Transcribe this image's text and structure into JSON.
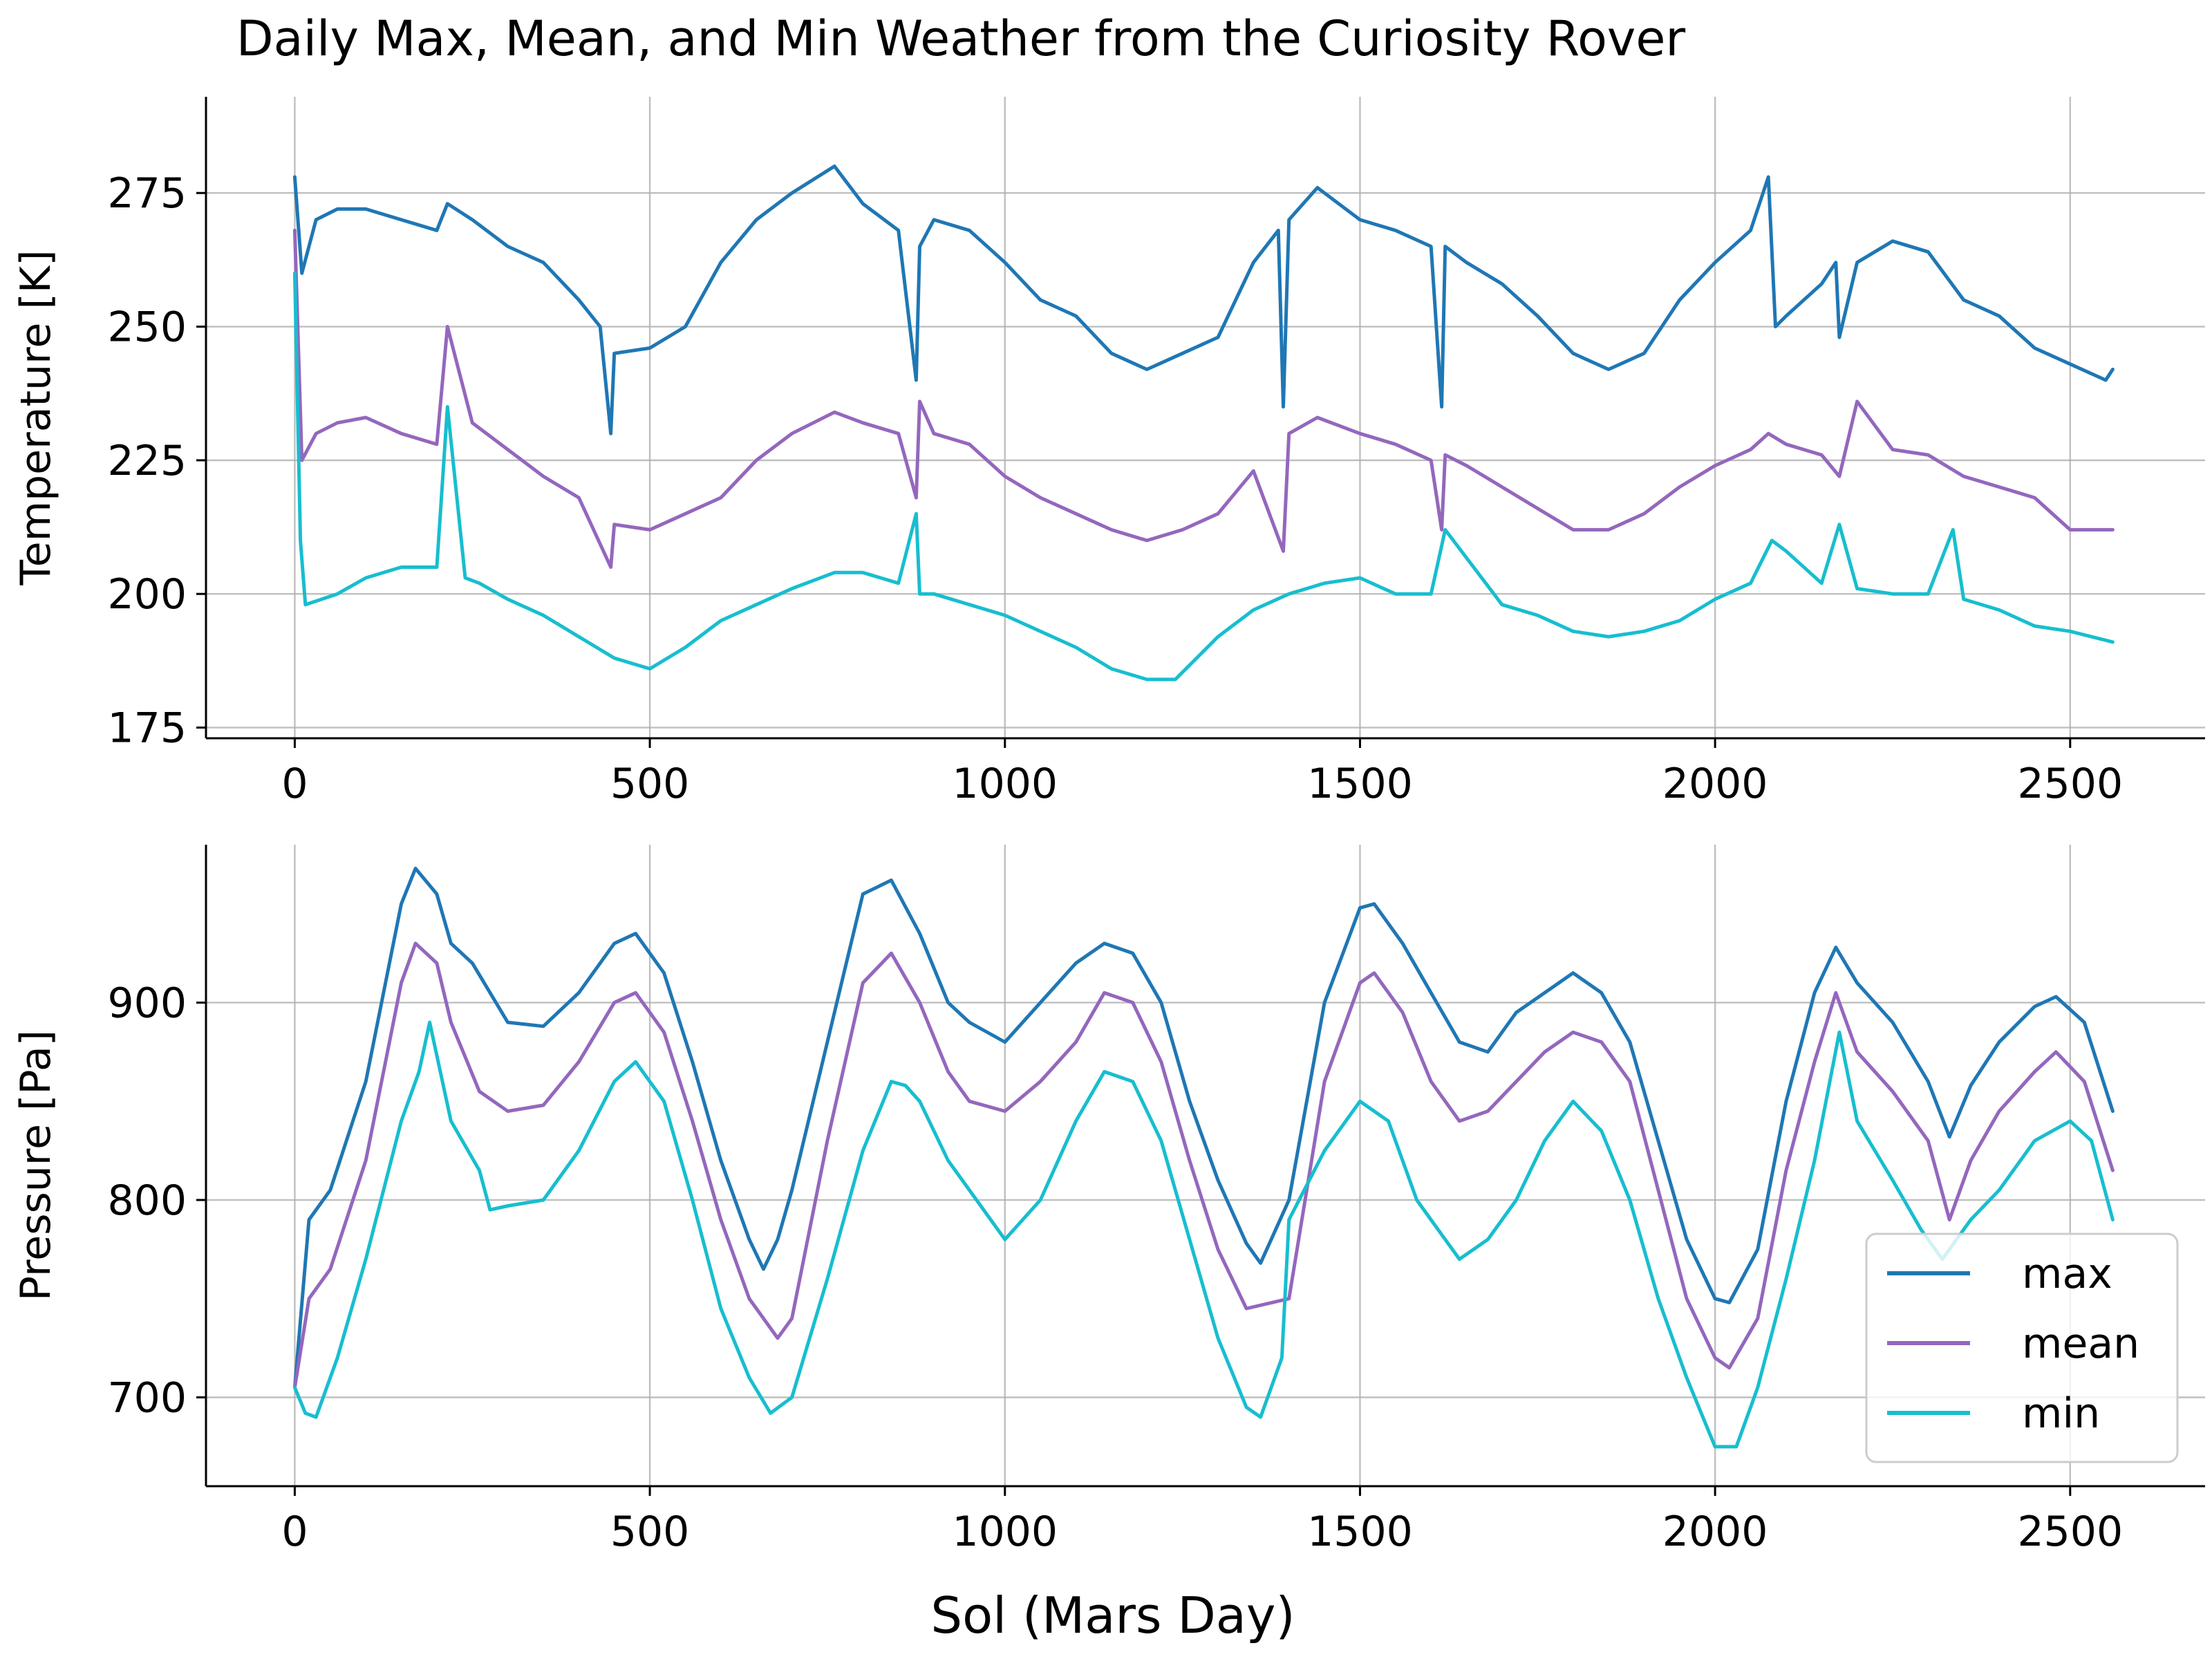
{
  "figure": {
    "title": "Daily Max, Mean, and Min Weather from the Curiosity Rover",
    "xlabel": "Sol (Mars Day)"
  },
  "colors": {
    "max": "#1f77b4",
    "mean": "#9467bd",
    "min": "#17becf"
  },
  "legend": {
    "location": "lower-right",
    "entries": [
      "max",
      "mean",
      "min"
    ]
  },
  "chart_data": [
    {
      "type": "line",
      "panel": "temperature",
      "ylabel": "Temperature [K]",
      "xlim": [
        -125,
        2690
      ],
      "ylim": [
        173,
        293
      ],
      "xticks": [
        0,
        500,
        1000,
        1500,
        2000,
        2500
      ],
      "yticks": [
        175,
        200,
        225,
        250,
        275
      ],
      "grid": true,
      "series": [
        {
          "name": "max",
          "x": [
            0,
            10,
            30,
            60,
            100,
            150,
            200,
            215,
            250,
            300,
            350,
            400,
            430,
            445,
            450,
            500,
            550,
            600,
            650,
            700,
            760,
            800,
            850,
            875,
            880,
            900,
            950,
            1000,
            1050,
            1100,
            1150,
            1200,
            1250,
            1300,
            1350,
            1385,
            1392,
            1400,
            1440,
            1500,
            1550,
            1600,
            1615,
            1620,
            1650,
            1700,
            1750,
            1800,
            1850,
            1900,
            1950,
            2000,
            2050,
            2075,
            2085,
            2100,
            2150,
            2170,
            2175,
            2200,
            2250,
            2300,
            2350,
            2400,
            2450,
            2500,
            2550,
            2560
          ],
          "values": [
            278,
            260,
            270,
            272,
            272,
            270,
            268,
            273,
            270,
            265,
            262,
            255,
            250,
            230,
            245,
            246,
            250,
            262,
            270,
            275,
            280,
            273,
            268,
            240,
            265,
            270,
            268,
            262,
            255,
            252,
            245,
            242,
            245,
            248,
            262,
            268,
            235,
            270,
            276,
            270,
            268,
            265,
            235,
            265,
            262,
            258,
            252,
            245,
            242,
            245,
            255,
            262,
            268,
            278,
            250,
            252,
            258,
            262,
            248,
            262,
            266,
            264,
            255,
            252,
            246,
            243,
            240,
            242
          ]
        },
        {
          "name": "mean",
          "x": [
            0,
            10,
            30,
            60,
            100,
            150,
            200,
            215,
            250,
            300,
            350,
            400,
            445,
            450,
            500,
            550,
            600,
            650,
            700,
            760,
            800,
            850,
            875,
            880,
            900,
            950,
            1000,
            1050,
            1100,
            1150,
            1200,
            1250,
            1300,
            1350,
            1392,
            1400,
            1440,
            1500,
            1550,
            1600,
            1615,
            1620,
            1650,
            1700,
            1750,
            1800,
            1850,
            1900,
            1950,
            2000,
            2050,
            2075,
            2100,
            2150,
            2175,
            2200,
            2250,
            2300,
            2350,
            2400,
            2450,
            2500,
            2560
          ],
          "values": [
            268,
            225,
            230,
            232,
            233,
            230,
            228,
            250,
            232,
            227,
            222,
            218,
            205,
            213,
            212,
            215,
            218,
            225,
            230,
            234,
            232,
            230,
            218,
            236,
            230,
            228,
            222,
            218,
            215,
            212,
            210,
            212,
            215,
            223,
            208,
            230,
            233,
            230,
            228,
            225,
            212,
            226,
            224,
            220,
            216,
            212,
            212,
            215,
            220,
            224,
            227,
            230,
            228,
            226,
            222,
            236,
            227,
            226,
            222,
            220,
            218,
            212,
            212
          ]
        },
        {
          "name": "min",
          "x": [
            0,
            8,
            15,
            60,
            100,
            150,
            200,
            215,
            240,
            260,
            300,
            350,
            400,
            450,
            500,
            550,
            600,
            650,
            700,
            760,
            800,
            850,
            875,
            880,
            900,
            950,
            1000,
            1050,
            1100,
            1150,
            1200,
            1240,
            1300,
            1350,
            1400,
            1450,
            1500,
            1550,
            1600,
            1620,
            1700,
            1750,
            1800,
            1850,
            1900,
            1950,
            2000,
            2050,
            2080,
            2100,
            2150,
            2175,
            2200,
            2250,
            2300,
            2335,
            2350,
            2400,
            2450,
            2500,
            2560
          ],
          "values": [
            260,
            210,
            198,
            200,
            203,
            205,
            205,
            235,
            203,
            202,
            199,
            196,
            192,
            188,
            186,
            190,
            195,
            198,
            201,
            204,
            204,
            202,
            215,
            200,
            200,
            198,
            196,
            193,
            190,
            186,
            184,
            184,
            192,
            197,
            200,
            202,
            203,
            200,
            200,
            212,
            198,
            196,
            193,
            192,
            193,
            195,
            199,
            202,
            210,
            208,
            202,
            213,
            201,
            200,
            200,
            212,
            199,
            197,
            194,
            193,
            191
          ]
        }
      ]
    },
    {
      "type": "line",
      "panel": "pressure",
      "ylabel": "Pressure [Pa]",
      "xlim": [
        -125,
        2690
      ],
      "ylim": [
        655,
        980
      ],
      "xticks": [
        0,
        500,
        1000,
        1500,
        2000,
        2500
      ],
      "yticks": [
        700,
        800,
        900
      ],
      "grid": true,
      "series": [
        {
          "name": "max",
          "x": [
            0,
            20,
            50,
            100,
            150,
            170,
            200,
            220,
            250,
            300,
            350,
            400,
            450,
            480,
            520,
            560,
            600,
            640,
            660,
            680,
            700,
            750,
            800,
            840,
            880,
            920,
            950,
            1000,
            1050,
            1100,
            1140,
            1180,
            1220,
            1260,
            1300,
            1340,
            1360,
            1400,
            1450,
            1500,
            1520,
            1560,
            1600,
            1640,
            1680,
            1720,
            1760,
            1800,
            1840,
            1880,
            1920,
            1960,
            2000,
            2020,
            2060,
            2100,
            2140,
            2170,
            2200,
            2250,
            2300,
            2330,
            2360,
            2400,
            2450,
            2480,
            2520,
            2560
          ],
          "values": [
            705,
            790,
            805,
            860,
            950,
            968,
            955,
            930,
            920,
            890,
            888,
            905,
            930,
            935,
            915,
            870,
            820,
            780,
            765,
            780,
            805,
            880,
            955,
            962,
            935,
            900,
            890,
            880,
            900,
            920,
            930,
            925,
            900,
            850,
            810,
            778,
            768,
            800,
            900,
            948,
            950,
            930,
            905,
            880,
            875,
            895,
            905,
            915,
            905,
            880,
            830,
            780,
            750,
            748,
            775,
            850,
            905,
            928,
            910,
            890,
            860,
            832,
            858,
            880,
            898,
            903,
            890,
            845
          ]
        },
        {
          "name": "mean",
          "x": [
            0,
            20,
            50,
            100,
            150,
            170,
            200,
            220,
            260,
            300,
            350,
            400,
            450,
            480,
            520,
            560,
            600,
            640,
            680,
            700,
            750,
            800,
            840,
            880,
            920,
            950,
            1000,
            1050,
            1100,
            1140,
            1180,
            1220,
            1260,
            1300,
            1340,
            1400,
            1450,
            1500,
            1520,
            1560,
            1600,
            1640,
            1680,
            1720,
            1760,
            1800,
            1840,
            1880,
            1920,
            1960,
            2000,
            2020,
            2060,
            2100,
            2140,
            2170,
            2200,
            2250,
            2300,
            2330,
            2360,
            2400,
            2450,
            2480,
            2520,
            2560
          ],
          "values": [
            705,
            750,
            765,
            820,
            910,
            930,
            920,
            890,
            855,
            845,
            848,
            870,
            900,
            905,
            885,
            840,
            790,
            750,
            730,
            740,
            830,
            910,
            925,
            900,
            865,
            850,
            845,
            860,
            880,
            905,
            900,
            870,
            820,
            775,
            745,
            750,
            860,
            910,
            915,
            895,
            860,
            840,
            845,
            860,
            875,
            885,
            880,
            860,
            805,
            750,
            720,
            715,
            740,
            815,
            870,
            905,
            875,
            855,
            830,
            790,
            820,
            845,
            865,
            875,
            860,
            815
          ]
        },
        {
          "name": "min",
          "x": [
            0,
            15,
            30,
            60,
            100,
            150,
            175,
            190,
            220,
            260,
            275,
            300,
            350,
            400,
            450,
            480,
            520,
            560,
            600,
            640,
            670,
            700,
            750,
            800,
            840,
            860,
            880,
            920,
            960,
            1000,
            1050,
            1100,
            1140,
            1180,
            1220,
            1260,
            1300,
            1340,
            1360,
            1390,
            1400,
            1450,
            1500,
            1540,
            1580,
            1620,
            1640,
            1680,
            1720,
            1760,
            1800,
            1840,
            1880,
            1920,
            1960,
            2000,
            2030,
            2060,
            2100,
            2140,
            2175,
            2200,
            2250,
            2290,
            2320,
            2360,
            2400,
            2450,
            2500,
            2530,
            2560
          ],
          "values": [
            705,
            692,
            690,
            720,
            770,
            840,
            865,
            890,
            840,
            815,
            795,
            797,
            800,
            825,
            860,
            870,
            850,
            800,
            745,
            710,
            692,
            700,
            760,
            825,
            860,
            858,
            850,
            820,
            800,
            780,
            800,
            840,
            865,
            860,
            830,
            780,
            730,
            695,
            690,
            720,
            790,
            825,
            850,
            840,
            800,
            780,
            770,
            780,
            800,
            830,
            850,
            835,
            800,
            750,
            710,
            675,
            675,
            705,
            760,
            820,
            885,
            840,
            810,
            785,
            770,
            790,
            805,
            830,
            840,
            830,
            790
          ]
        }
      ]
    }
  ]
}
